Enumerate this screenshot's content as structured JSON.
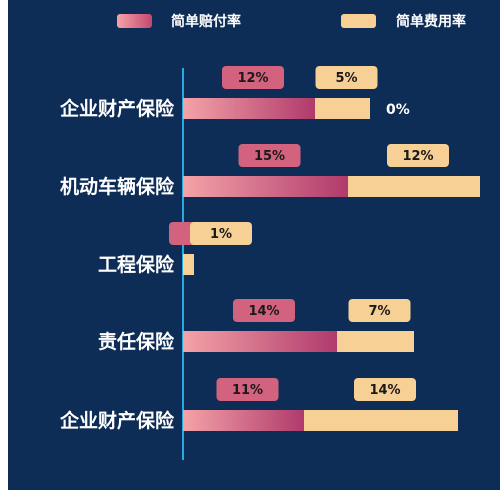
{
  "chart_data": {
    "type": "bar",
    "orientation": "horizontal",
    "stacked": true,
    "categories": [
      "企业财产保险",
      "机动车辆保险",
      "工程保险",
      "责任保险",
      "企业财产保险"
    ],
    "series": [
      {
        "name": "简单赔付率",
        "values": [
          12,
          15,
          0,
          14,
          11
        ],
        "labels": [
          "12%",
          "15%",
          "",
          "14%",
          "11%"
        ],
        "color": "#b03a6c",
        "color_start": "#f4a3a8"
      },
      {
        "name": "简单费用率",
        "values": [
          5,
          12,
          1,
          7,
          14
        ],
        "labels": [
          "5%",
          "12%",
          "1%",
          "7%",
          "14%"
        ],
        "color": "#f7d095"
      }
    ],
    "extra_labels": [
      {
        "category_index": 0,
        "text": "0%"
      }
    ],
    "xlim": [
      0,
      27
    ],
    "legend": "top-center",
    "grid": false,
    "axis_color": "#29a9e1",
    "badge_colors": {
      "简单赔付率": "#d2627d",
      "简单费用率": "#f7d095"
    },
    "background": "#0d2d57"
  }
}
